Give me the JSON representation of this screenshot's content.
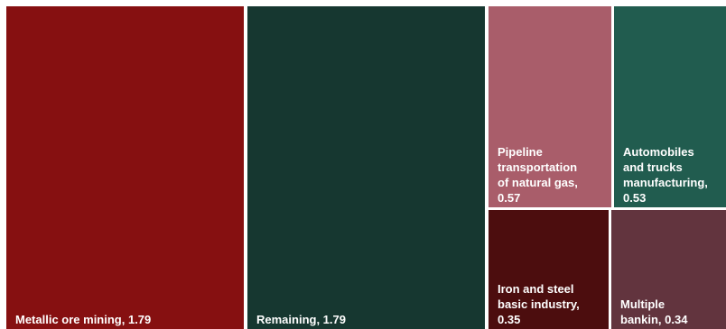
{
  "chart_data": {
    "type": "treemap",
    "items": [
      {
        "name": "Metallic ore mining",
        "value": 1.79,
        "label": "Metallic ore mining,  1.79",
        "color": "#861011"
      },
      {
        "name": "Remaining",
        "value": 1.79,
        "label": "Remaining,  1.79",
        "color": "#163730"
      },
      {
        "name": "Pipeline transportation of natural gas",
        "value": 0.57,
        "label": "Pipeline transportation of natural gas, 0.57",
        "color": "#a95d6a"
      },
      {
        "name": "Automobiles and trucks manufacturing",
        "value": 0.53,
        "label": "Automobiles and trucks manufacturing, 0.53",
        "color": "#215c4f"
      },
      {
        "name": "Iron and steel basic industry",
        "value": 0.35,
        "label": "Iron and steel basic industry, 0.35",
        "color": "#4c0d0e"
      },
      {
        "name": "Multiple bankin",
        "value": 0.34,
        "label": "Multiple bankin,  0.34",
        "color": "#62343e"
      }
    ]
  }
}
